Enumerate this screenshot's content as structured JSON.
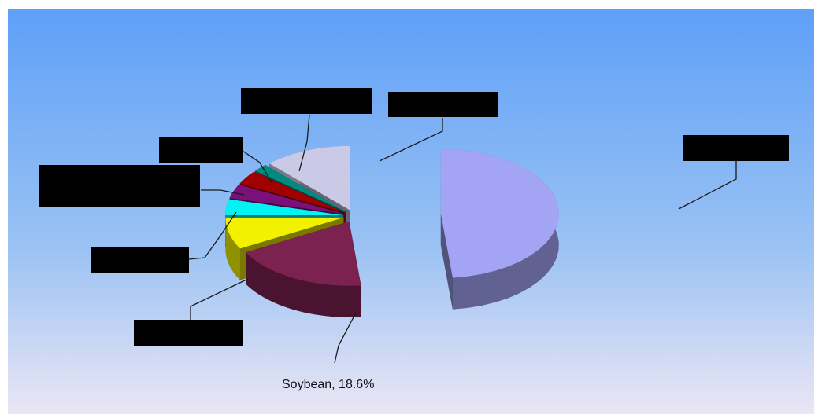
{
  "chart_data": {
    "type": "pie",
    "values": [
      48.4,
      18.6,
      8,
      4,
      3.5,
      3.5,
      2,
      12
    ],
    "value_labels": [
      null,
      "Soybean, 18.6%",
      null,
      null,
      null,
      null,
      null,
      null
    ],
    "colors": [
      "#a4a4f4",
      "#7c2250",
      "#f2f200",
      "#00f4f4",
      "#7a107a",
      "#a00000",
      "#008a80",
      "#cacae6"
    ]
  }
}
